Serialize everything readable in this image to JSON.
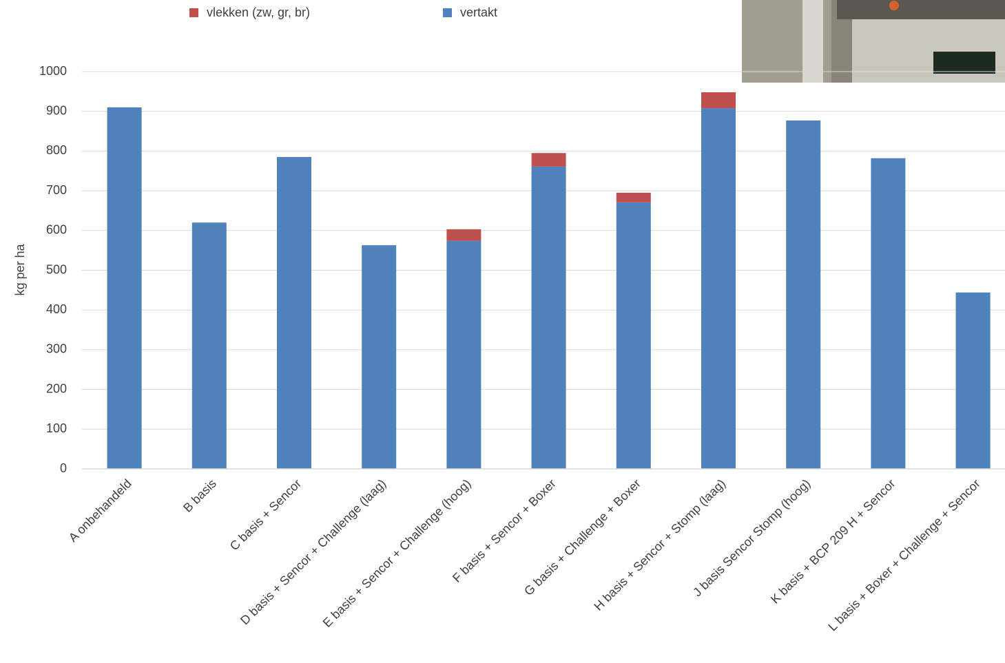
{
  "chart_data": {
    "type": "bar",
    "stacked": true,
    "y_label": "kg per ha",
    "categories": [
      "A onbehandeld",
      "B basis",
      "C basis + Sencor",
      "D basis + Sencor + Challenge (laag)",
      "E basis + Sencor + Challenge (hoog)",
      "F basis + Sencor + Boxer",
      "G basis + Challenge + Boxer",
      "H basis + Sencor + Stomp (laag)",
      "J basis Sencor Stomp (hoog)",
      "K basis + BCP 209 H + Sencor",
      "L basis + Boxer + Challenge + Sencor"
    ],
    "series": [
      {
        "name": "vertakt",
        "color": "#4f81bd",
        "values": [
          910,
          620,
          785,
          563,
          574,
          761,
          671,
          908,
          877,
          782,
          444
        ]
      },
      {
        "name": "vlekken (zw, gr, br)",
        "color": "#c0504d",
        "values": [
          0,
          0,
          0,
          0,
          29,
          34,
          24,
          40,
          0,
          0,
          0
        ]
      }
    ],
    "ylim": [
      0,
      1000
    ],
    "yticks": [
      0,
      100,
      200,
      300,
      400,
      500,
      600,
      700,
      800,
      900,
      1000
    ],
    "grid": true
  }
}
